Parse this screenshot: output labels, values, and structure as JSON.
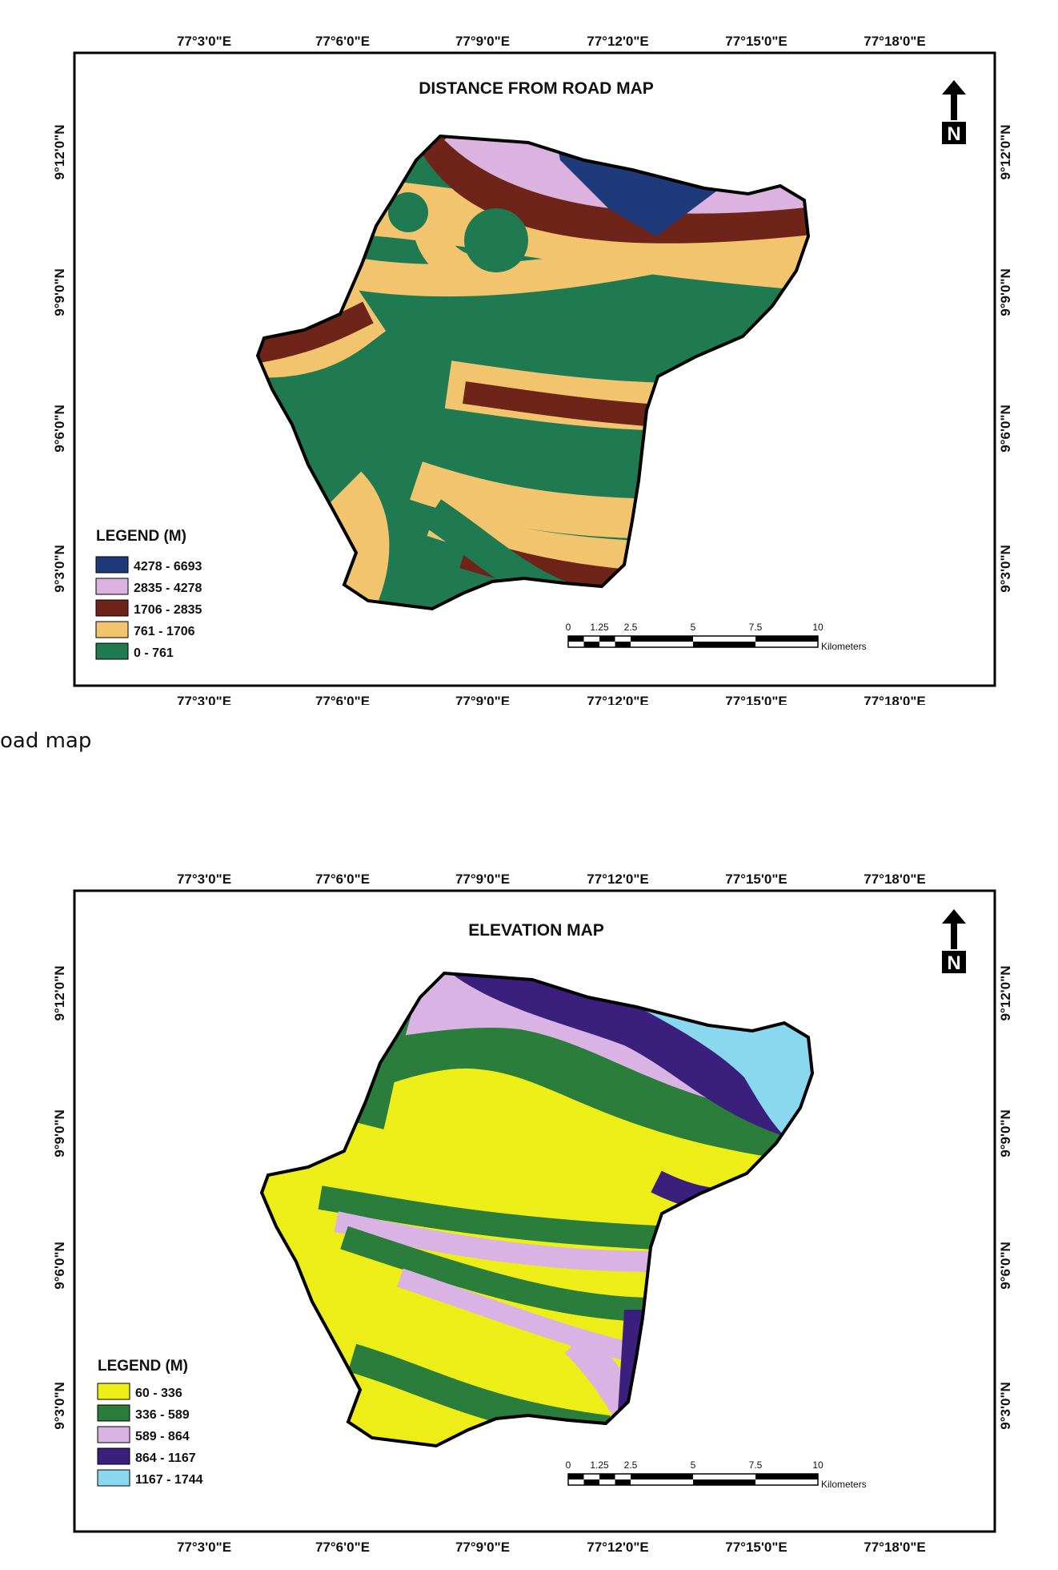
{
  "caption": "oad map",
  "maps": [
    {
      "title": "DISTANCE FROM ROAD MAP",
      "lon_labels": [
        "77°3'0\"E",
        "77°6'0\"E",
        "77°9'0\"E",
        "77°12'0\"E",
        "77°15'0\"E",
        "77°18'0\"E"
      ],
      "lat_labels": [
        "9°12'0\"N",
        "9°9'0\"N",
        "9°6'0\"N",
        "9°3'0\"N"
      ],
      "north_label": "N",
      "legend_title": "LEGEND (M)",
      "legend": [
        {
          "label": "4278 - 6693",
          "color": "#1f3a7a"
        },
        {
          "label": "2835 - 4278",
          "color": "#dcb3e0"
        },
        {
          "label": "1706 - 2835",
          "color": "#6e2418"
        },
        {
          "label": "761 - 1706",
          "color": "#f2c46e"
        },
        {
          "label": "0 - 761",
          "color": "#1f7a52"
        }
      ],
      "scale_labels": [
        "0",
        "1.25",
        "2.5",
        "5",
        "7.5",
        "10"
      ],
      "scale_unit": "Kilometers"
    },
    {
      "title": "ELEVATION MAP",
      "lon_labels": [
        "77°3'0\"E",
        "77°6'0\"E",
        "77°9'0\"E",
        "77°12'0\"E",
        "77°15'0\"E",
        "77°18'0\"E"
      ],
      "lat_labels": [
        "9°12'0\"N",
        "9°9'0\"N",
        "9°6'0\"N",
        "9°3'0\"N"
      ],
      "north_label": "N",
      "legend_title": "LEGEND (M)",
      "legend": [
        {
          "label": "60 - 336",
          "color": "#eded17"
        },
        {
          "label": "336 - 589",
          "color": "#2a7d3a"
        },
        {
          "label": "589 - 864",
          "color": "#d9b3e3"
        },
        {
          "label": "864 - 1167",
          "color": "#3b1f7d"
        },
        {
          "label": "1167 - 1744",
          "color": "#8ad8ef"
        }
      ],
      "scale_labels": [
        "0",
        "1.25",
        "2.5",
        "5",
        "7.5",
        "10"
      ],
      "scale_unit": "Kilometers"
    }
  ]
}
